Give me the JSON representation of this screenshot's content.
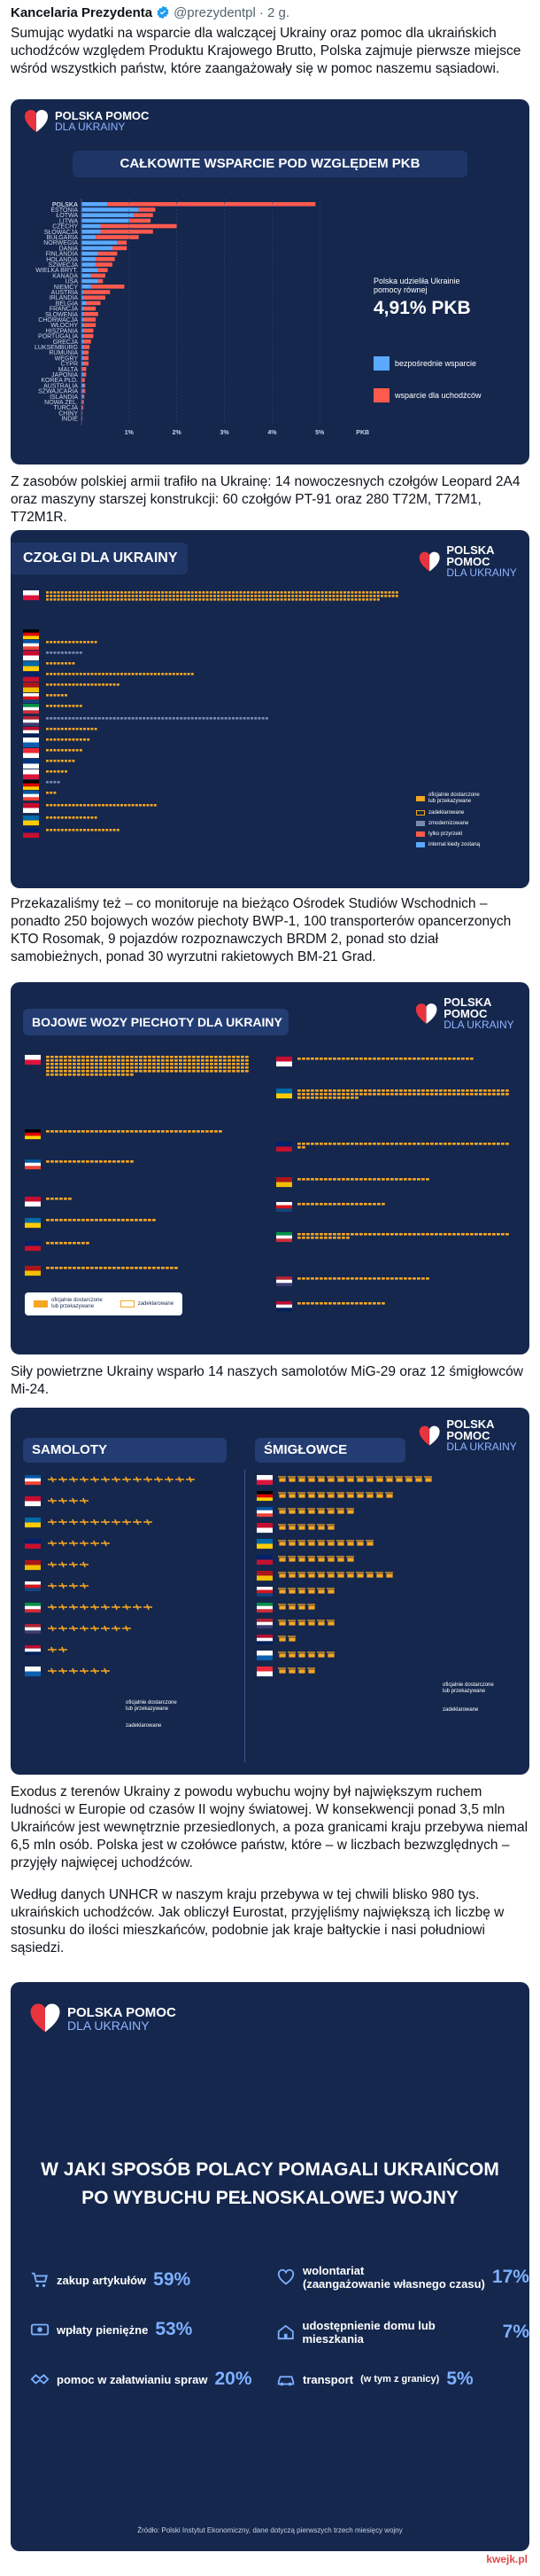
{
  "tweet": {
    "author": "Kancelaria Prezydenta",
    "handle": "@prezydentpl",
    "time": "· 2 g.",
    "p1": "Sumując wydatki na wsparcie dla walczącej Ukrainy oraz pomoc dla ukraińskich uchodźców względem Produktu Krajowego Brutto, Polska zajmuje pierwsze miejsce wśród wszystkich państw, które zaangażowały się w pomoc naszemu sąsiadowi.",
    "p2": "Z zasobów polskiej armii trafiło na Ukrainę: 14 nowoczesnych czołgów Leopard 2A4 oraz maszyny starszej konstrukcji: 60 czołgów PT-91 oraz 280 T72M, T72M1, T72M1R.",
    "p3": "Przekazaliśmy też – co monitoruje na bieżąco Ośrodek Studiów Wschodnich – ponadto 250 bojowych wozów piechoty BWP-1, 100 transporterów opancerzonych KTO Rosomak, 9 pojazdów rozpoznawczych BRDM 2, ponad sto dział samobieżnych, ponad 30 wyrzutni rakietowych BM-21 Grad.",
    "p4": "Siły powietrzne Ukrainy wsparło 14 naszych samolotów MiG-29 oraz 12 śmigłowców Mi-24.",
    "p5": "Exodus z terenów Ukrainy z powodu wybuchu wojny był największym ruchem ludności w Europie od czasów II wojny światowej. W konsekwencji ponad 3,5 mln Ukraińców jest wewnętrznie przesiedlonych, a poza granicami kraju przebywa niemal 6,5 mln osób. Polska jest w czołówce państw, które – w liczbach bezwzględnych – przyjęły najwięcej uchodźców.",
    "p6": "Według danych UNHCR w naszym kraju przebywa w tej chwili blisko 980 tys. ukraińskich uchodźców. Jak obliczył Eurostat, przyjęliśmy największą ich liczbę w stosunku do ilości mieszkańców, podobnie jak kraje bałtyckie i nasi południowi sąsiedzi."
  },
  "brand": {
    "line1": "POLSKA POMOC",
    "line2": "DLA UKRAINY"
  },
  "colors": {
    "navy": "#15274d",
    "direct": "#5aa9ff",
    "refugee": "#ff5a4e",
    "accent": "#7db0ff",
    "gold": "#f5a623"
  },
  "card1": {
    "title": "CAŁKOWITE WSPARCIE  POD WZGLĘDEM PKB",
    "note_l1": "Polska udzieliła Ukrainie",
    "note_l2": "pomocy równej",
    "note_value": "4,91% PKB",
    "legend_direct": "bezpośrednie wsparcie",
    "legend_refugee": "wsparcie dla uchodźców",
    "first_country": "POLSKA"
  },
  "chart_data": {
    "type": "bar",
    "orientation": "horizontal",
    "stacked": true,
    "title": "CAŁKOWITE WSPARCIE  POD WZGLĘDEM PKB",
    "x_ticks": [
      "1%",
      "2%",
      "3%",
      "4%",
      "5%",
      "PKB"
    ],
    "xlim": [
      0,
      5.2
    ],
    "categories": [
      "POLSKA",
      "ESTONIA",
      "ŁOTWA",
      "LITWA",
      "CZECHY",
      "SŁOWACJA",
      "BUŁGARIA",
      "NORWEGIA",
      "DANIA",
      "FINLANDIA",
      "HOLANDIA",
      "SZWECJA",
      "WIELKA BRYT.",
      "KANADA",
      "USA",
      "NIEMCY",
      "AUSTRIA",
      "IRLANDIA",
      "BELGIA",
      "FRANCJA",
      "SŁOWENIA",
      "CHORWACJA",
      "WŁOCHY",
      "HISZPANIA",
      "PORTUGALIA",
      "GRECJA",
      "LUKSEMBURG",
      "RUMUNIA",
      "WĘGRY",
      "CYPR",
      "MALTA",
      "JAPONIA",
      "KOREA PŁD.",
      "AUSTRALIA",
      "SZWAJCARIA",
      "ISLANDIA",
      "NOWA ZEL.",
      "TURCJA",
      "CHINY",
      "INDIE"
    ],
    "series": [
      {
        "name": "bezpośrednie wsparcie",
        "values": [
          0.55,
          1.2,
          1.1,
          1.0,
          0.4,
          0.4,
          0.3,
          0.75,
          0.65,
          0.35,
          0.3,
          0.3,
          0.35,
          0.2,
          0.35,
          0.2,
          0.05,
          0.05,
          0.1,
          0.05,
          0.05,
          0.05,
          0.05,
          0.05,
          0.05,
          0.05,
          0.05,
          0.05,
          0.05,
          0.05,
          0.02,
          0.05,
          0.02,
          0.06,
          0.03,
          0.03,
          0.02,
          0.02,
          0.01,
          0.01
        ]
      },
      {
        "name": "wsparcie dla uchodźców",
        "values": [
          4.36,
          0.35,
          0.4,
          0.45,
          1.6,
          1.1,
          0.9,
          0.2,
          0.3,
          0.4,
          0.4,
          0.35,
          0.2,
          0.3,
          0.1,
          0.7,
          0.55,
          0.45,
          0.3,
          0.25,
          0.3,
          0.25,
          0.25,
          0.2,
          0.2,
          0.15,
          0.12,
          0.1,
          0.1,
          0.1,
          0.08,
          0.05,
          0.05,
          0.02,
          0.05,
          0.03,
          0.03,
          0.02,
          0.01,
          0.01
        ]
      }
    ]
  },
  "card2": {
    "title": "CZOŁGI DLA UKRAINY",
    "legend1a": "oficjalnie dostarczone",
    "legend1b": "lub przekazywane",
    "legend2": "zadeklarowane",
    "legend3": "zmodernizowane",
    "legend4": "tylko przyrzekł",
    "legend5": "internal kiedy zostaną",
    "counts": [
      280,
      0,
      14,
      10,
      8,
      40,
      20,
      6,
      10,
      60,
      14,
      12,
      10,
      8,
      6,
      4,
      3,
      30,
      14,
      20
    ]
  },
  "card3": {
    "title": "BOJOWE WOZY PIECHOTY DLA UKRAINY",
    "legend1a": "oficjalnie dostarczone",
    "legend1b": "lub przekazywane",
    "legend2": "zadeklarowane",
    "left_counts": [
      250,
      40,
      20,
      6,
      25,
      10,
      30
    ],
    "right_counts": [
      40,
      110,
      50,
      30,
      20,
      60,
      30,
      20
    ]
  },
  "card4": {
    "planes_title": "SAMOLOTY",
    "heli_title": "ŚMIGŁOWCE",
    "legend1a": "oficjalnie dostarczone",
    "legend1b": "lub przekazywane",
    "legend2": "zadeklarowane",
    "planes_counts": [
      14,
      4,
      10,
      6,
      4,
      4,
      10,
      8,
      2,
      6
    ],
    "heli_counts": [
      16,
      12,
      8,
      6,
      10,
      8,
      12,
      6,
      4,
      6,
      2,
      6,
      4
    ]
  },
  "card5": {
    "title_l1": "W JAKI SPOSÓB POLACY POMAGALI UKRAIŃCOM",
    "title_l2": "PO WYBUCHU PEŁNOSKALOWEJ WOJNY",
    "items": [
      {
        "label": "zakup artykułów",
        "value": "59%"
      },
      {
        "label": "wpłaty pieniężne",
        "value": "53%"
      },
      {
        "label": "pomoc w załatwianiu spraw",
        "value": "20%"
      },
      {
        "label": "wolontariat",
        "label2": "(zaangażowanie własnego czasu)",
        "value": "17%"
      },
      {
        "label": "udostępnienie domu lub mieszkania",
        "value": "7%"
      },
      {
        "label": "transport",
        "label2": "(w tym z granicy)",
        "value": "5%"
      }
    ],
    "source": "Źródło: Polski Instytut Ekonomiczny, dane dotyczą pierwszych trzech miesięcy wojny"
  },
  "watermark": "kwejk.pl"
}
